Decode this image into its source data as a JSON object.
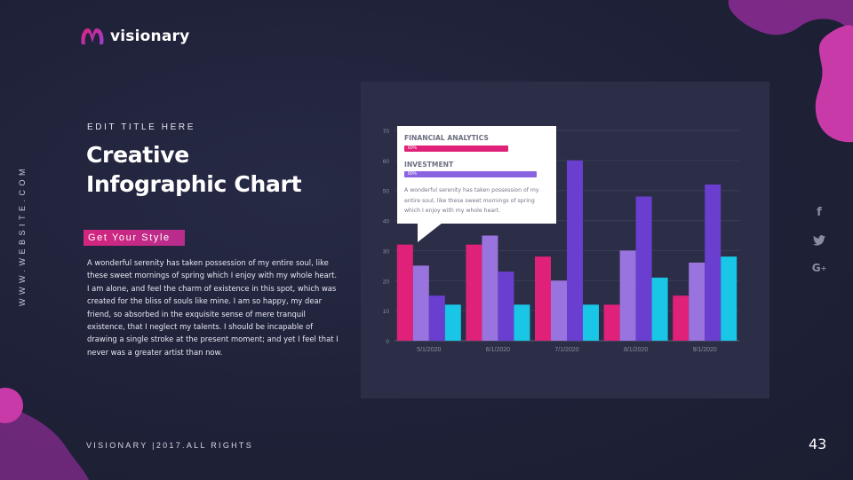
{
  "brand": {
    "name": "visionary"
  },
  "sidebar": {
    "website": "WWW.WEBSITE.COM"
  },
  "heading": {
    "eyebrow": "EDIT TITLE HERE",
    "title_line1": "Creative",
    "title_line2": "Infographic Chart"
  },
  "tag": {
    "label": "Get Your Style"
  },
  "body": {
    "text": "A wonderful serenity has taken possession of my entire soul, like these sweet mornings of spring which I enjoy with my whole heart. I am alone, and feel the charm of existence in this spot, which was created for the bliss of souls like mine. I am so happy, my dear friend, so absorbed in the exquisite sense of mere tranquil existence, that I neglect my talents. I should be incapable of drawing a single stroke at the present moment; and yet I feel that I never was a greater artist than now."
  },
  "tooltip": {
    "metric1": {
      "label": "FINANCIAL ANALYTICS",
      "value": "60%",
      "fraction": 0.6
    },
    "metric2": {
      "label": "INVESTMENT",
      "value": "80%",
      "fraction": 0.8
    },
    "description": "A wonderful serenity has taken possession of my entire soul, like these sweet mornings of spring which I enjoy with my whole heart."
  },
  "social": {
    "icons": [
      "facebook-icon",
      "twitter-icon",
      "google-plus-icon"
    ]
  },
  "footer": {
    "text": "VISIONARY |2017.ALL RIGHTS"
  },
  "page": {
    "number": "43"
  },
  "colors": {
    "pink": "#e0217a",
    "lavender": "#9a74de",
    "purple": "#6a3ecf",
    "cyan": "#19c6e6",
    "accent_blob": "#c93aa9"
  },
  "chart_data": {
    "type": "bar",
    "categories": [
      "5/1/2020",
      "6/1/2020",
      "7/1/2020",
      "8/1/2020",
      "9/1/2020"
    ],
    "series": [
      {
        "values": [
          32,
          32,
          28,
          12,
          15
        ],
        "color": "#e0217a"
      },
      {
        "values": [
          25,
          35,
          20,
          30,
          26
        ],
        "color": "#9a74de"
      },
      {
        "values": [
          15,
          23,
          60,
          48,
          52
        ],
        "color": "#6a3ecf"
      },
      {
        "values": [
          12,
          12,
          12,
          21,
          28
        ],
        "color": "#19c6e6"
      }
    ],
    "yticks": [
      0,
      10,
      20,
      30,
      40,
      50,
      60,
      70
    ],
    "ylim": [
      0,
      70
    ],
    "grid": true
  }
}
